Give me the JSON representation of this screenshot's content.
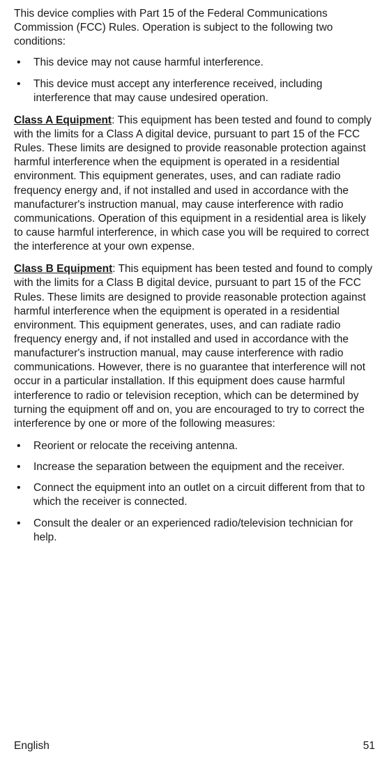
{
  "intro": "This device complies with Part 15 of the Federal Communications Commission (FCC) Rules. Operation is subject to the following two conditions:",
  "conditions": [
    "This device may not cause harmful interference.",
    "This device must accept any interference received, including interference that may cause undesired operation."
  ],
  "classA": {
    "heading": "Class A Equipment",
    "body": ": This equipment has been tested and found to comply with the limits for a Class A digital device, pursuant to part 15 of the FCC Rules. These limits are designed to provide reasonable protection against harmful interference when the equipment is operated in a residential environment. This equipment generates, uses, and can radiate radio frequency energy and, if not installed and used in accordance with the manufacturer's instruction manual, may cause interference with radio communications. Operation of this equipment in a residential area is likely to cause harmful interference, in which case you will be required to correct the interference at your own expense."
  },
  "classB": {
    "heading": "Class B Equipment",
    "body": ": This equipment has been tested and found to comply with the limits for a Class B digital device, pursuant to part 15 of the FCC Rules. These limits are designed to provide reasonable protection against harmful interference when the equipment is operated in a residential environment. This equipment generates, uses, and can radiate radio frequency energy and, if not installed and used in accordance with the manufacturer's instruction manual, may cause interference with radio communications. However, there is no guarantee that interference will not occur in a particular installation. If this equipment does cause harmful interference to radio or television reception, which can be determined by turning the equipment off and on, you are encouraged to try to correct the interference by one or more of the following measures:"
  },
  "measures": [
    "Reorient or relocate the receiving antenna.",
    "Increase the separation between the equipment and the receiver.",
    "Connect the equipment into an outlet on a circuit different from that to which the receiver is connected.",
    "Consult the dealer or an experienced radio/television technician for help."
  ],
  "footer": {
    "language": "English",
    "pageNumber": "51"
  },
  "styles": {
    "textColor": "#1a1a1a",
    "backgroundColor": "#ffffff",
    "bodyFontSize": 15.5,
    "lineHeight": 1.3
  }
}
